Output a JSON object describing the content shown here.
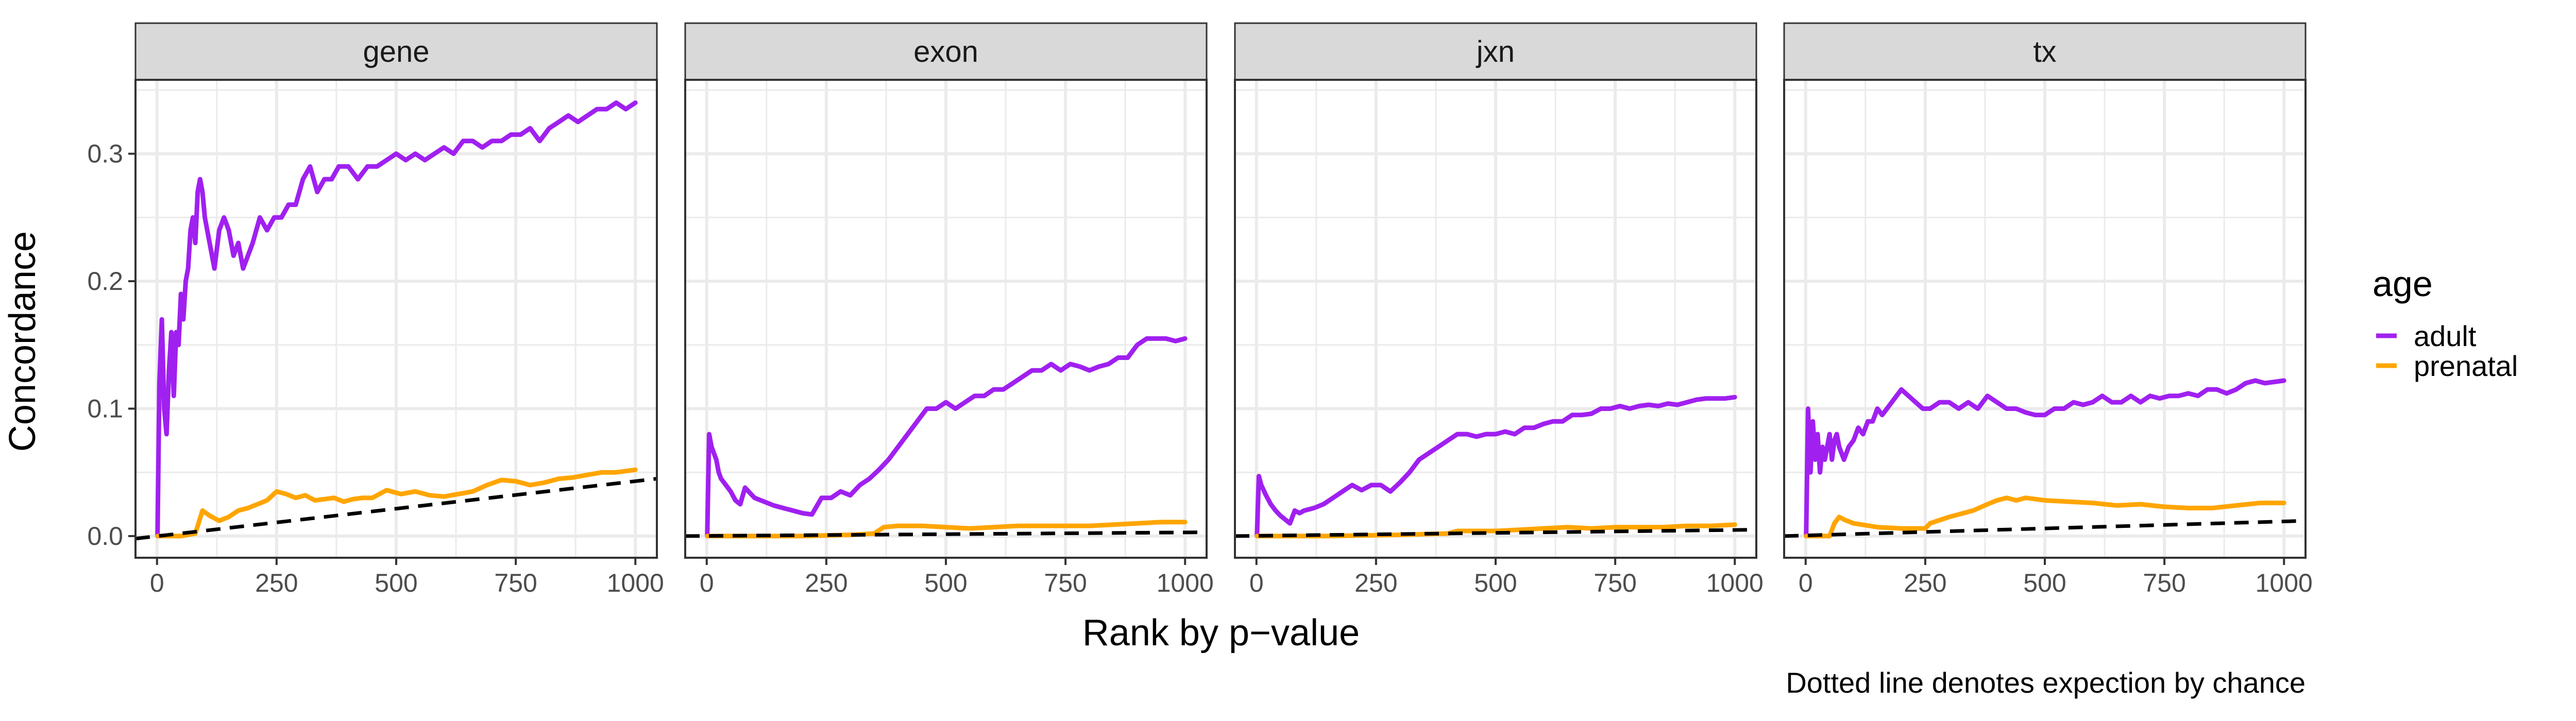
{
  "chart_data": {
    "type": "line",
    "xlabel": "Rank by p−value",
    "ylabel": "Concordance",
    "caption": "Dotted line denotes expection by chance",
    "xlim": [
      -45,
      1045
    ],
    "ylim": [
      -0.017,
      0.358
    ],
    "xticks": [
      0,
      250,
      500,
      750,
      1000
    ],
    "xtick_labels": [
      "0",
      "250",
      "500",
      "750",
      "1000"
    ],
    "yticks": [
      0.0,
      0.1,
      0.2,
      0.3
    ],
    "ytick_labels": [
      "0.0",
      "0.1",
      "0.2",
      "0.3"
    ],
    "grid": true,
    "legend": {
      "title": "age",
      "position": "right",
      "entries": [
        {
          "label": "adult",
          "color": "#A020F0"
        },
        {
          "label": "prenatal",
          "color": "#FFA500"
        }
      ]
    },
    "colors": {
      "adult": "#A020F0",
      "prenatal": "#FFA500",
      "chance": "#000000",
      "strip": "#D9D9D9",
      "grid": "#EBEBEB"
    },
    "panels": [
      {
        "title": "gene",
        "chance_line": {
          "x": [
            -45,
            1045
          ],
          "y": [
            -0.002,
            0.045
          ]
        },
        "series": [
          {
            "name": "adult",
            "x": [
              1,
              5,
              10,
              15,
              20,
              25,
              30,
              35,
              40,
              45,
              50,
              55,
              60,
              65,
              70,
              75,
              80,
              85,
              90,
              95,
              100,
              110,
              120,
              130,
              140,
              150,
              160,
              170,
              180,
              190,
              200,
              215,
              230,
              245,
              260,
              275,
              290,
              305,
              320,
              335,
              350,
              365,
              380,
              400,
              420,
              440,
              460,
              480,
              500,
              520,
              540,
              560,
              580,
              600,
              620,
              640,
              660,
              680,
              700,
              720,
              740,
              760,
              780,
              800,
              820,
              840,
              860,
              880,
              900,
              920,
              940,
              960,
              980,
              1000
            ],
            "y": [
              0.0,
              0.12,
              0.17,
              0.1,
              0.08,
              0.13,
              0.16,
              0.11,
              0.16,
              0.15,
              0.19,
              0.17,
              0.2,
              0.21,
              0.24,
              0.25,
              0.23,
              0.27,
              0.28,
              0.27,
              0.25,
              0.23,
              0.21,
              0.24,
              0.25,
              0.24,
              0.22,
              0.23,
              0.21,
              0.22,
              0.23,
              0.25,
              0.24,
              0.25,
              0.25,
              0.26,
              0.26,
              0.28,
              0.29,
              0.27,
              0.28,
              0.28,
              0.29,
              0.29,
              0.28,
              0.29,
              0.29,
              0.295,
              0.3,
              0.295,
              0.3,
              0.295,
              0.3,
              0.305,
              0.3,
              0.31,
              0.31,
              0.305,
              0.31,
              0.31,
              0.315,
              0.315,
              0.32,
              0.31,
              0.32,
              0.325,
              0.33,
              0.325,
              0.33,
              0.335,
              0.335,
              0.34,
              0.335,
              0.34
            ]
          },
          {
            "name": "prenatal",
            "x": [
              1,
              50,
              80,
              95,
              110,
              130,
              150,
              170,
              190,
              210,
              230,
              250,
              270,
              290,
              310,
              330,
              350,
              370,
              390,
              410,
              430,
              450,
              480,
              510,
              540,
              570,
              600,
              630,
              660,
              690,
              720,
              750,
              780,
              810,
              840,
              870,
              900,
              930,
              960,
              1000
            ],
            "y": [
              0.0,
              0.0,
              0.002,
              0.02,
              0.016,
              0.012,
              0.015,
              0.02,
              0.022,
              0.025,
              0.028,
              0.035,
              0.033,
              0.03,
              0.032,
              0.028,
              0.029,
              0.03,
              0.027,
              0.029,
              0.03,
              0.03,
              0.036,
              0.033,
              0.035,
              0.032,
              0.031,
              0.033,
              0.035,
              0.04,
              0.044,
              0.043,
              0.04,
              0.042,
              0.045,
              0.046,
              0.048,
              0.05,
              0.05,
              0.052
            ]
          }
        ]
      },
      {
        "title": "exon",
        "chance_line": {
          "x": [
            -45,
            1045
          ],
          "y": [
            0.0,
            0.003
          ]
        },
        "series": [
          {
            "name": "adult",
            "x": [
              1,
              5,
              10,
              15,
              20,
              25,
              30,
              40,
              50,
              60,
              70,
              80,
              90,
              100,
              120,
              140,
              160,
              180,
              200,
              220,
              240,
              260,
              280,
              300,
              320,
              340,
              360,
              380,
              400,
              420,
              440,
              460,
              480,
              500,
              520,
              540,
              560,
              580,
              600,
              620,
              640,
              660,
              680,
              700,
              720,
              740,
              760,
              780,
              800,
              820,
              840,
              860,
              880,
              900,
              920,
              940,
              960,
              980,
              1000
            ],
            "y": [
              0.0,
              0.08,
              0.07,
              0.065,
              0.06,
              0.05,
              0.045,
              0.04,
              0.035,
              0.028,
              0.025,
              0.038,
              0.034,
              0.03,
              0.027,
              0.024,
              0.022,
              0.02,
              0.018,
              0.017,
              0.03,
              0.03,
              0.035,
              0.032,
              0.04,
              0.045,
              0.052,
              0.06,
              0.07,
              0.08,
              0.09,
              0.1,
              0.1,
              0.105,
              0.1,
              0.105,
              0.11,
              0.11,
              0.115,
              0.115,
              0.12,
              0.125,
              0.13,
              0.13,
              0.135,
              0.13,
              0.135,
              0.133,
              0.13,
              0.133,
              0.135,
              0.14,
              0.14,
              0.15,
              0.155,
              0.155,
              0.155,
              0.153,
              0.155
            ]
          },
          {
            "name": "prenatal",
            "x": [
              1,
              100,
              200,
              300,
              350,
              370,
              400,
              450,
              500,
              550,
              600,
              650,
              700,
              750,
              800,
              850,
              900,
              950,
              1000
            ],
            "y": [
              0.0,
              0.0,
              0.0,
              0.001,
              0.002,
              0.007,
              0.008,
              0.008,
              0.007,
              0.006,
              0.007,
              0.008,
              0.008,
              0.008,
              0.008,
              0.009,
              0.01,
              0.011,
              0.011
            ]
          }
        ]
      },
      {
        "title": "jxn",
        "chance_line": {
          "x": [
            -45,
            1045
          ],
          "y": [
            0.0,
            0.005
          ]
        },
        "series": [
          {
            "name": "adult",
            "x": [
              1,
              5,
              10,
              20,
              30,
              40,
              50,
              60,
              70,
              80,
              90,
              100,
              120,
              140,
              160,
              180,
              200,
              220,
              240,
              260,
              280,
              300,
              320,
              340,
              360,
              380,
              400,
              420,
              440,
              460,
              480,
              500,
              520,
              540,
              560,
              580,
              600,
              620,
              640,
              660,
              680,
              700,
              720,
              740,
              760,
              780,
              800,
              820,
              840,
              860,
              880,
              900,
              920,
              940,
              960,
              980,
              1000
            ],
            "y": [
              0.0,
              0.047,
              0.04,
              0.032,
              0.025,
              0.02,
              0.016,
              0.013,
              0.01,
              0.02,
              0.018,
              0.02,
              0.022,
              0.025,
              0.03,
              0.035,
              0.04,
              0.036,
              0.04,
              0.04,
              0.035,
              0.042,
              0.05,
              0.06,
              0.065,
              0.07,
              0.075,
              0.08,
              0.08,
              0.078,
              0.08,
              0.08,
              0.082,
              0.08,
              0.085,
              0.085,
              0.088,
              0.09,
              0.09,
              0.095,
              0.095,
              0.096,
              0.1,
              0.1,
              0.102,
              0.1,
              0.102,
              0.103,
              0.102,
              0.104,
              0.103,
              0.105,
              0.107,
              0.108,
              0.108,
              0.108,
              0.109
            ]
          },
          {
            "name": "prenatal",
            "x": [
              1,
              150,
              300,
              400,
              420,
              450,
              500,
              550,
              600,
              650,
              700,
              750,
              800,
              850,
              900,
              950,
              1000
            ],
            "y": [
              0.0,
              0.0,
              0.001,
              0.002,
              0.004,
              0.004,
              0.004,
              0.005,
              0.006,
              0.007,
              0.006,
              0.007,
              0.007,
              0.007,
              0.008,
              0.008,
              0.009
            ]
          }
        ]
      },
      {
        "title": "tx",
        "chance_line": {
          "x": [
            -45,
            1045
          ],
          "y": [
            0.0,
            0.012
          ]
        },
        "series": [
          {
            "name": "adult",
            "x": [
              1,
              5,
              10,
              15,
              20,
              25,
              30,
              35,
              40,
              45,
              50,
              55,
              60,
              65,
              70,
              80,
              90,
              100,
              110,
              120,
              130,
              140,
              150,
              160,
              170,
              180,
              190,
              200,
              215,
              230,
              245,
              260,
              280,
              300,
              320,
              340,
              360,
              380,
              400,
              420,
              440,
              460,
              480,
              500,
              520,
              540,
              560,
              580,
              600,
              620,
              640,
              660,
              680,
              700,
              720,
              740,
              760,
              780,
              800,
              820,
              840,
              860,
              880,
              900,
              920,
              940,
              960,
              980,
              1000
            ],
            "y": [
              0.0,
              0.1,
              0.05,
              0.09,
              0.06,
              0.08,
              0.05,
              0.07,
              0.06,
              0.07,
              0.08,
              0.06,
              0.075,
              0.08,
              0.07,
              0.06,
              0.07,
              0.075,
              0.085,
              0.08,
              0.09,
              0.09,
              0.1,
              0.095,
              0.1,
              0.105,
              0.11,
              0.115,
              0.11,
              0.105,
              0.1,
              0.1,
              0.105,
              0.105,
              0.1,
              0.105,
              0.1,
              0.11,
              0.105,
              0.1,
              0.1,
              0.097,
              0.095,
              0.095,
              0.1,
              0.1,
              0.105,
              0.103,
              0.105,
              0.11,
              0.105,
              0.105,
              0.11,
              0.105,
              0.11,
              0.108,
              0.11,
              0.11,
              0.112,
              0.11,
              0.115,
              0.115,
              0.112,
              0.115,
              0.12,
              0.122,
              0.12,
              0.121,
              0.122
            ]
          },
          {
            "name": "prenatal",
            "x": [
              1,
              20,
              50,
              60,
              70,
              80,
              100,
              150,
              200,
              250,
              260,
              300,
              350,
              380,
              400,
              420,
              440,
              460,
              500,
              550,
              600,
              650,
              700,
              750,
              800,
              850,
              900,
              950,
              1000
            ],
            "y": [
              0.0,
              0.0,
              0.0,
              0.01,
              0.015,
              0.013,
              0.01,
              0.007,
              0.006,
              0.006,
              0.01,
              0.015,
              0.02,
              0.025,
              0.028,
              0.03,
              0.028,
              0.03,
              0.028,
              0.027,
              0.026,
              0.024,
              0.025,
              0.023,
              0.022,
              0.022,
              0.024,
              0.026,
              0.026
            ]
          }
        ]
      }
    ]
  }
}
